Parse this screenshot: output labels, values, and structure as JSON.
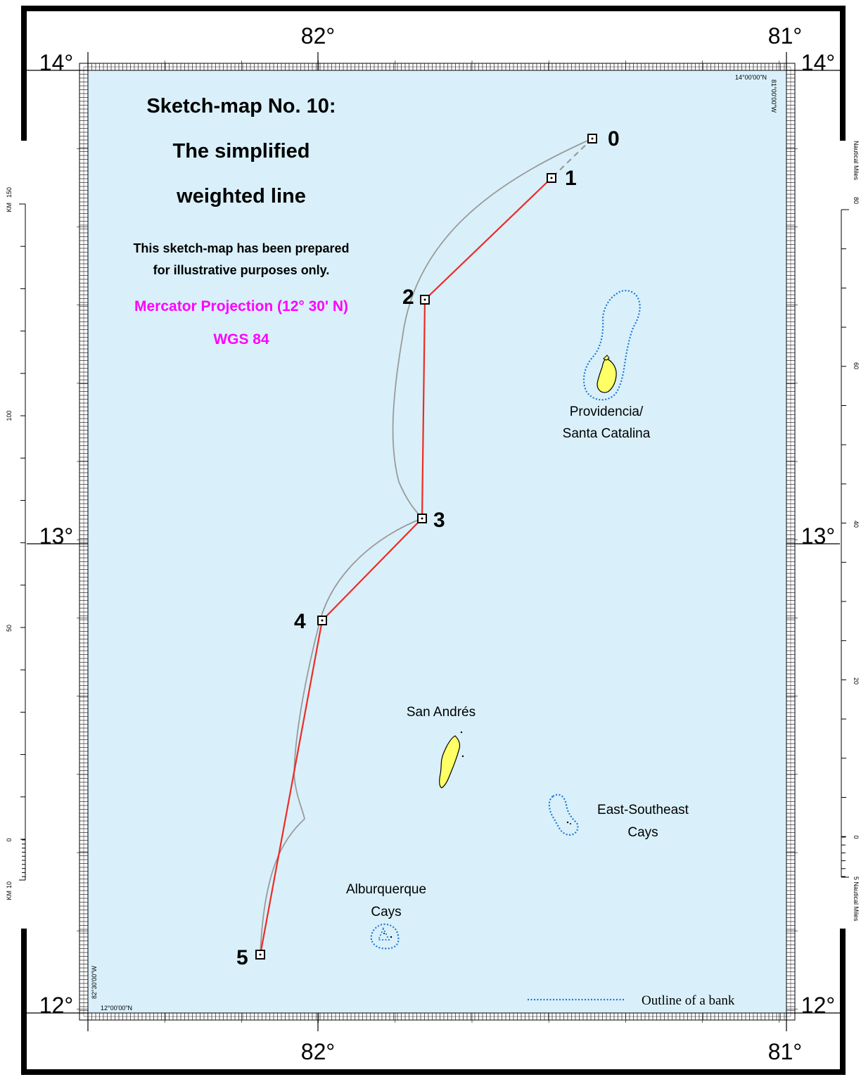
{
  "map": {
    "title_lines": [
      "Sketch-map No. 10:",
      "The simplified",
      "weighted line"
    ],
    "notice_lines": [
      "This sketch-map has been prepared",
      "for illustrative purposes only."
    ],
    "projection": "Mercator Projection (12° 30' N)",
    "datum": "WGS 84",
    "colors": {
      "sea": "#d9f0fa",
      "weighted_line": "#ee2b24",
      "reference_line": "#9a9a9a",
      "island_fill": "#ffff66",
      "bank_outline": "#1e78dc",
      "projection_text": "#ff00ff"
    },
    "graticule": {
      "top_longitudes": [
        "82°",
        "81°"
      ],
      "bottom_longitudes": [
        "82°",
        "81°"
      ],
      "left_latitudes": [
        "14°",
        "13°",
        "12°"
      ],
      "right_latitudes": [
        "14°",
        "13°",
        "12°"
      ],
      "corner_top_right": "14°00'00\"N",
      "corner_top_right_lon": "81°00'00\"W",
      "corner_bottom_left": "12°00'00\"N",
      "corner_bottom_left_lon": "82°30'00\"W"
    },
    "points": [
      {
        "label": "0"
      },
      {
        "label": "1"
      },
      {
        "label": "2"
      },
      {
        "label": "3"
      },
      {
        "label": "4"
      },
      {
        "label": "5"
      }
    ],
    "places": {
      "providencia": [
        "Providencia/",
        "Santa Catalina"
      ],
      "san_andres": [
        "San Andrés"
      ],
      "ese_cays": [
        "East-Southeast",
        "Cays"
      ],
      "alburquerque": [
        "Alburquerque",
        "Cays"
      ]
    },
    "scales": {
      "left_unit": "KM",
      "left_top_label": "150",
      "left_ticks": [
        "100",
        "50",
        "0"
      ],
      "left_bottom": "10",
      "right_unit_top": "Nautical  Miles",
      "right_top_label": "80",
      "right_ticks": [
        "60",
        "40",
        "20",
        "0"
      ],
      "right_bottom": "5 Nautical  Miles"
    },
    "legend": {
      "bank_label": "Outline of a bank"
    }
  }
}
